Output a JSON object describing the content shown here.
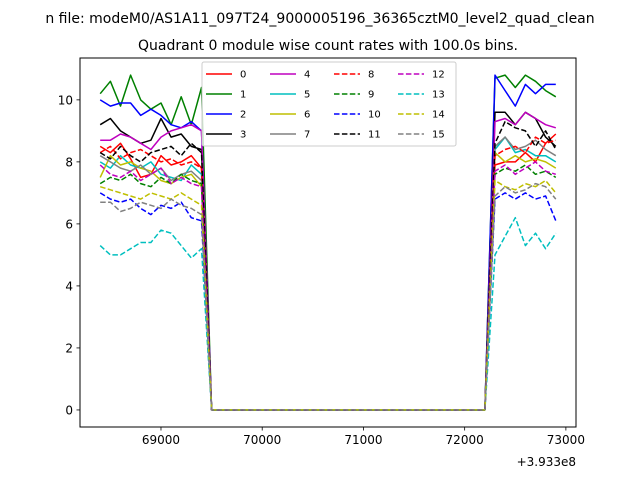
{
  "chart_data": {
    "type": "line",
    "suptitle": "n file: modeM0/AS1A11_097T24_9000005196_36365cztM0_level2_quad_clean",
    "title": "Quadrant 0 module wise count rates with 100.0s bins.",
    "xlabel": "",
    "ylabel": "",
    "x_offset_label": "+3.933e8",
    "xlim": [
      68200,
      73100
    ],
    "ylim": [
      -0.55,
      11.35
    ],
    "xticks": [
      69000,
      70000,
      71000,
      72000,
      73000
    ],
    "xtick_labels": [
      "69000",
      "70000",
      "71000",
      "72000",
      "73000"
    ],
    "yticks": [
      0,
      2,
      4,
      6,
      8,
      10
    ],
    "ytick_labels": [
      "0",
      "2",
      "4",
      "6",
      "8",
      "10"
    ],
    "grid": false,
    "legend_position": "top-center",
    "x": [
      68400,
      68500,
      68600,
      68700,
      68800,
      68900,
      69000,
      69100,
      69200,
      69300,
      69400,
      69500,
      69600,
      69700,
      69800,
      69900,
      70000,
      70100,
      70200,
      70300,
      70400,
      70500,
      70600,
      70700,
      70800,
      70900,
      71000,
      71100,
      71200,
      71300,
      71400,
      71500,
      71600,
      71700,
      71800,
      71900,
      72000,
      72100,
      72200,
      72300,
      72400,
      72500,
      72600,
      72700,
      72800,
      72900
    ],
    "series": [
      {
        "name": "0",
        "color": "#ff0000",
        "dash": "solid",
        "values": [
          8.5,
          8.3,
          8.6,
          8.1,
          7.5,
          7.6,
          8.2,
          7.9,
          8.0,
          8.2,
          7.8,
          0.0,
          0.0,
          0.0,
          0.0,
          0.0,
          0.0,
          0.0,
          0.0,
          0.0,
          0.0,
          0.0,
          0.0,
          0.0,
          0.0,
          0.0,
          0.0,
          0.0,
          0.0,
          0.0,
          0.0,
          0.0,
          0.0,
          0.0,
          0.0,
          0.0,
          0.0,
          0.0,
          0.0,
          7.9,
          8.0,
          8.0,
          8.3,
          8.0,
          8.6,
          8.9
        ]
      },
      {
        "name": "1",
        "color": "#008000",
        "dash": "solid",
        "values": [
          10.2,
          10.6,
          9.8,
          10.8,
          10.0,
          9.7,
          9.9,
          9.2,
          10.1,
          9.2,
          10.4,
          0.0,
          0.0,
          0.0,
          0.0,
          0.0,
          0.0,
          0.0,
          0.0,
          0.0,
          0.0,
          0.0,
          0.0,
          0.0,
          0.0,
          0.0,
          0.0,
          0.0,
          0.0,
          0.0,
          0.0,
          0.0,
          0.0,
          0.0,
          0.0,
          0.0,
          0.0,
          0.0,
          0.0,
          10.7,
          10.8,
          10.4,
          10.8,
          10.6,
          10.3,
          10.1
        ]
      },
      {
        "name": "2",
        "color": "#0000ff",
        "dash": "solid",
        "values": [
          10.0,
          9.8,
          9.9,
          9.9,
          9.5,
          9.7,
          9.5,
          9.2,
          9.1,
          9.3,
          9.0,
          0.0,
          0.0,
          0.0,
          0.0,
          0.0,
          0.0,
          0.0,
          0.0,
          0.0,
          0.0,
          0.0,
          0.0,
          0.0,
          0.0,
          0.0,
          0.0,
          0.0,
          0.0,
          0.0,
          0.0,
          0.0,
          0.0,
          0.0,
          0.0,
          0.0,
          0.0,
          0.0,
          0.0,
          10.8,
          10.3,
          9.8,
          10.5,
          10.2,
          10.5,
          10.5
        ]
      },
      {
        "name": "3",
        "color": "#000000",
        "dash": "solid",
        "values": [
          9.2,
          9.4,
          9.0,
          8.8,
          8.6,
          8.7,
          9.4,
          8.8,
          8.9,
          8.5,
          8.4,
          0.0,
          0.0,
          0.0,
          0.0,
          0.0,
          0.0,
          0.0,
          0.0,
          0.0,
          0.0,
          0.0,
          0.0,
          0.0,
          0.0,
          0.0,
          0.0,
          0.0,
          0.0,
          0.0,
          0.0,
          0.0,
          0.0,
          0.0,
          0.0,
          0.0,
          0.0,
          0.0,
          0.0,
          9.6,
          9.6,
          9.2,
          9.6,
          9.4,
          8.8,
          8.5
        ]
      },
      {
        "name": "4",
        "color": "#bf00bf",
        "dash": "solid",
        "values": [
          8.7,
          8.7,
          8.9,
          8.8,
          8.6,
          8.4,
          8.8,
          9.0,
          9.1,
          9.2,
          9.0,
          0.0,
          0.0,
          0.0,
          0.0,
          0.0,
          0.0,
          0.0,
          0.0,
          0.0,
          0.0,
          0.0,
          0.0,
          0.0,
          0.0,
          0.0,
          0.0,
          0.0,
          0.0,
          0.0,
          0.0,
          0.0,
          0.0,
          0.0,
          0.0,
          0.0,
          0.0,
          0.0,
          0.0,
          9.3,
          9.4,
          9.2,
          9.6,
          9.4,
          9.2,
          9.1
        ]
      },
      {
        "name": "5",
        "color": "#00bfbf",
        "dash": "solid",
        "values": [
          8.0,
          7.8,
          8.2,
          7.9,
          7.8,
          8.0,
          7.6,
          7.5,
          7.4,
          7.9,
          7.6,
          0.0,
          0.0,
          0.0,
          0.0,
          0.0,
          0.0,
          0.0,
          0.0,
          0.0,
          0.0,
          0.0,
          0.0,
          0.0,
          0.0,
          0.0,
          0.0,
          0.0,
          0.0,
          0.0,
          0.0,
          0.0,
          0.0,
          0.0,
          0.0,
          0.0,
          0.0,
          0.0,
          0.0,
          8.4,
          8.8,
          8.3,
          8.4,
          8.2,
          8.2,
          8.0
        ]
      },
      {
        "name": "6",
        "color": "#bfbf00",
        "dash": "solid",
        "values": [
          7.5,
          8.2,
          7.9,
          8.0,
          7.8,
          7.7,
          7.4,
          7.3,
          7.5,
          7.6,
          7.2,
          0.0,
          0.0,
          0.0,
          0.0,
          0.0,
          0.0,
          0.0,
          0.0,
          0.0,
          0.0,
          0.0,
          0.0,
          0.0,
          0.0,
          0.0,
          0.0,
          0.0,
          0.0,
          0.0,
          0.0,
          0.0,
          0.0,
          0.0,
          0.0,
          0.0,
          0.0,
          0.0,
          0.0,
          8.3,
          8.0,
          8.2,
          8.0,
          8.1,
          8.0,
          7.8
        ]
      },
      {
        "name": "7",
        "color": "#808080",
        "dash": "solid",
        "values": [
          8.2,
          8.0,
          7.8,
          7.7,
          7.9,
          7.6,
          7.8,
          7.4,
          7.6,
          7.7,
          7.4,
          0.0,
          0.0,
          0.0,
          0.0,
          0.0,
          0.0,
          0.0,
          0.0,
          0.0,
          0.0,
          0.0,
          0.0,
          0.0,
          0.0,
          0.0,
          0.0,
          0.0,
          0.0,
          0.0,
          0.0,
          0.0,
          0.0,
          0.0,
          0.0,
          0.0,
          0.0,
          0.0,
          0.0,
          8.5,
          8.8,
          8.4,
          8.5,
          8.7,
          8.4,
          8.2
        ]
      },
      {
        "name": "8",
        "color": "#ff0000",
        "dash": "dashed",
        "values": [
          8.3,
          8.5,
          8.1,
          8.3,
          8.4,
          8.2,
          8.0,
          8.1,
          7.9,
          8.0,
          7.8,
          0.0,
          0.0,
          0.0,
          0.0,
          0.0,
          0.0,
          0.0,
          0.0,
          0.0,
          0.0,
          0.0,
          0.0,
          0.0,
          0.0,
          0.0,
          0.0,
          0.0,
          0.0,
          0.0,
          0.0,
          0.0,
          0.0,
          0.0,
          0.0,
          0.0,
          0.0,
          0.0,
          0.0,
          8.2,
          8.4,
          8.5,
          8.3,
          8.8,
          8.6,
          8.7
        ]
      },
      {
        "name": "9",
        "color": "#008000",
        "dash": "dashed",
        "values": [
          7.3,
          7.5,
          7.4,
          7.6,
          7.3,
          7.2,
          7.5,
          7.3,
          7.6,
          7.4,
          7.3,
          0.0,
          0.0,
          0.0,
          0.0,
          0.0,
          0.0,
          0.0,
          0.0,
          0.0,
          0.0,
          0.0,
          0.0,
          0.0,
          0.0,
          0.0,
          0.0,
          0.0,
          0.0,
          0.0,
          0.0,
          0.0,
          0.0,
          0.0,
          0.0,
          0.0,
          0.0,
          0.0,
          0.0,
          7.6,
          7.8,
          7.7,
          7.9,
          7.6,
          7.7,
          7.5
        ]
      },
      {
        "name": "10",
        "color": "#0000ff",
        "dash": "dashed",
        "values": [
          7.0,
          6.8,
          6.7,
          6.8,
          6.5,
          6.3,
          6.6,
          6.5,
          6.7,
          6.2,
          6.1,
          0.0,
          0.0,
          0.0,
          0.0,
          0.0,
          0.0,
          0.0,
          0.0,
          0.0,
          0.0,
          0.0,
          0.0,
          0.0,
          0.0,
          0.0,
          0.0,
          0.0,
          0.0,
          0.0,
          0.0,
          0.0,
          0.0,
          0.0,
          0.0,
          0.0,
          0.0,
          0.0,
          0.0,
          6.8,
          7.0,
          6.8,
          7.0,
          6.8,
          6.9,
          6.1
        ]
      },
      {
        "name": "11",
        "color": "#000000",
        "dash": "dashed",
        "values": [
          8.3,
          8.1,
          8.5,
          8.2,
          8.0,
          8.3,
          8.4,
          8.5,
          8.2,
          8.6,
          8.3,
          0.0,
          0.0,
          0.0,
          0.0,
          0.0,
          0.0,
          0.0,
          0.0,
          0.0,
          0.0,
          0.0,
          0.0,
          0.0,
          0.0,
          0.0,
          0.0,
          0.0,
          0.0,
          0.0,
          0.0,
          0.0,
          0.0,
          0.0,
          0.0,
          0.0,
          0.0,
          0.0,
          0.0,
          8.6,
          9.3,
          9.1,
          9.0,
          8.5,
          9.0,
          8.4
        ]
      },
      {
        "name": "12",
        "color": "#bf00bf",
        "dash": "dashed",
        "values": [
          7.9,
          7.6,
          7.5,
          7.7,
          7.4,
          7.6,
          7.8,
          7.3,
          7.5,
          7.3,
          7.2,
          0.0,
          0.0,
          0.0,
          0.0,
          0.0,
          0.0,
          0.0,
          0.0,
          0.0,
          0.0,
          0.0,
          0.0,
          0.0,
          0.0,
          0.0,
          0.0,
          0.0,
          0.0,
          0.0,
          0.0,
          0.0,
          0.0,
          0.0,
          0.0,
          0.0,
          0.0,
          0.0,
          0.0,
          7.7,
          7.9,
          7.6,
          7.8,
          8.0,
          7.7,
          7.6
        ]
      },
      {
        "name": "13",
        "color": "#00bfbf",
        "dash": "dashed",
        "values": [
          5.3,
          5.0,
          5.0,
          5.2,
          5.4,
          5.4,
          5.8,
          5.7,
          5.3,
          4.9,
          5.2,
          0.0,
          0.0,
          0.0,
          0.0,
          0.0,
          0.0,
          0.0,
          0.0,
          0.0,
          0.0,
          0.0,
          0.0,
          0.0,
          0.0,
          0.0,
          0.0,
          0.0,
          0.0,
          0.0,
          0.0,
          0.0,
          0.0,
          0.0,
          0.0,
          0.0,
          0.0,
          0.0,
          0.0,
          5.0,
          5.6,
          6.2,
          5.3,
          5.7,
          5.2,
          5.7
        ]
      },
      {
        "name": "14",
        "color": "#bfbf00",
        "dash": "dashed",
        "values": [
          7.2,
          7.1,
          7.0,
          6.9,
          6.8,
          7.0,
          6.9,
          6.8,
          7.0,
          6.8,
          6.6,
          0.0,
          0.0,
          0.0,
          0.0,
          0.0,
          0.0,
          0.0,
          0.0,
          0.0,
          0.0,
          0.0,
          0.0,
          0.0,
          0.0,
          0.0,
          0.0,
          0.0,
          0.0,
          0.0,
          0.0,
          0.0,
          0.0,
          0.0,
          0.0,
          0.0,
          0.0,
          0.0,
          0.0,
          7.4,
          7.2,
          7.1,
          7.3,
          7.2,
          7.4,
          7.0
        ]
      },
      {
        "name": "15",
        "color": "#808080",
        "dash": "dashed",
        "values": [
          6.7,
          6.7,
          6.4,
          6.5,
          6.7,
          6.6,
          6.5,
          6.8,
          6.6,
          6.5,
          6.3,
          0.0,
          0.0,
          0.0,
          0.0,
          0.0,
          0.0,
          0.0,
          0.0,
          0.0,
          0.0,
          0.0,
          0.0,
          0.0,
          0.0,
          0.0,
          0.0,
          0.0,
          0.0,
          0.0,
          0.0,
          0.0,
          0.0,
          0.0,
          0.0,
          0.0,
          0.0,
          0.0,
          0.0,
          6.9,
          7.2,
          7.0,
          7.1,
          7.3,
          7.2,
          6.8
        ]
      }
    ]
  }
}
